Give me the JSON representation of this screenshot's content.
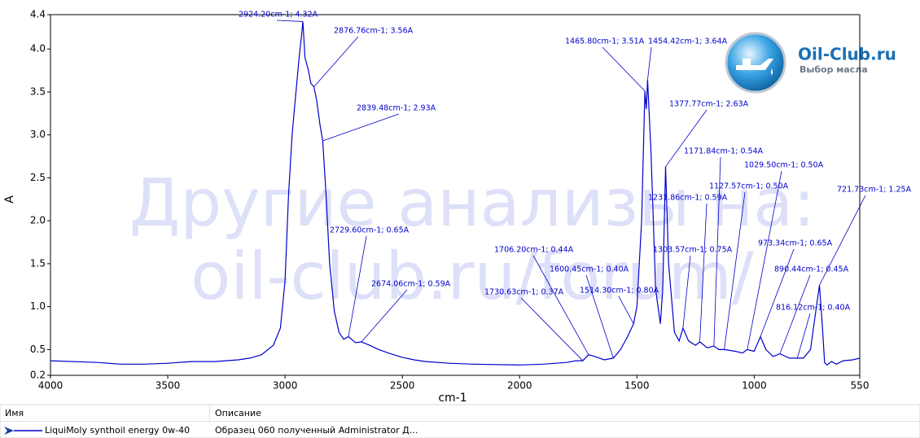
{
  "chart_data": {
    "type": "line",
    "xlabel": "cm-1",
    "ylabel": "A",
    "xlim": [
      4000,
      550
    ],
    "ylim": [
      0.2,
      4.4
    ],
    "xticks": [
      4000,
      3500,
      3000,
      2500,
      2000,
      1500,
      1000,
      550
    ],
    "yticks": [
      0.2,
      0.5,
      {
        "value": 1,
        "label": "1.0"
      },
      1.5,
      {
        "value": 2,
        "label": "2.0"
      },
      2.5,
      {
        "value": 3,
        "label": "3.0"
      },
      3.5,
      {
        "value": 4,
        "label": "4.0"
      },
      4.4
    ],
    "x": [
      4000,
      3800,
      3700,
      3600,
      3500,
      3400,
      3300,
      3200,
      3150,
      3100,
      3050,
      3020,
      3000,
      2985,
      2970,
      2960,
      2950,
      2940,
      2930,
      2924.2,
      2915,
      2900,
      2890,
      2876.76,
      2865,
      2850,
      2839.48,
      2825,
      2810,
      2790,
      2770,
      2750,
      2729.6,
      2700,
      2674.06,
      2640,
      2600,
      2550,
      2500,
      2450,
      2400,
      2300,
      2200,
      2000,
      1900,
      1800,
      1760,
      1730.63,
      1706.2,
      1680,
      1640,
      1600.45,
      1570,
      1540,
      1514.3,
      1500,
      1480,
      1465.8,
      1460,
      1454.42,
      1440,
      1420,
      1400,
      1390,
      1377.77,
      1365,
      1340,
      1320,
      1303.57,
      1280,
      1250,
      1231.86,
      1200,
      1171.84,
      1150,
      1127.57,
      1080,
      1050,
      1029.5,
      1000,
      973.34,
      950,
      920,
      890.44,
      850,
      816.12,
      790,
      760,
      740,
      721.73,
      710,
      700,
      690,
      670,
      650,
      620,
      580,
      550
    ],
    "series": [
      {
        "name": "LiquiMoly synthoil energy 0w-40",
        "description": "Образец 060 полученный Administrator Д...",
        "color": "#0000cc",
        "values": [
          0.37,
          0.35,
          0.33,
          0.33,
          0.34,
          0.36,
          0.36,
          0.38,
          0.4,
          0.44,
          0.55,
          0.75,
          1.3,
          2.3,
          3.0,
          3.3,
          3.6,
          3.9,
          4.15,
          4.32,
          3.9,
          3.75,
          3.6,
          3.56,
          3.4,
          3.1,
          2.93,
          2.3,
          1.5,
          0.95,
          0.7,
          0.62,
          0.65,
          0.58,
          0.59,
          0.55,
          0.5,
          0.45,
          0.41,
          0.38,
          0.36,
          0.34,
          0.33,
          0.32,
          0.33,
          0.35,
          0.37,
          0.37,
          0.44,
          0.42,
          0.38,
          0.4,
          0.5,
          0.65,
          0.8,
          1.0,
          2.0,
          3.51,
          3.3,
          3.64,
          2.8,
          1.2,
          0.8,
          1.2,
          2.63,
          1.5,
          0.7,
          0.6,
          0.75,
          0.6,
          0.55,
          0.59,
          0.52,
          0.54,
          0.5,
          0.5,
          0.48,
          0.46,
          0.5,
          0.48,
          0.65,
          0.5,
          0.42,
          0.45,
          0.4,
          0.4,
          0.4,
          0.5,
          0.9,
          1.25,
          0.8,
          0.35,
          0.32,
          0.36,
          0.33,
          0.37,
          0.38,
          0.4
        ]
      }
    ],
    "annotations": [
      {
        "text": "2924.20cm-1; 4.32A",
        "x": 2924.2,
        "y": 4.32
      },
      {
        "text": "2876.76cm-1; 3.56A",
        "x": 2876.76,
        "y": 3.56
      },
      {
        "text": "2839.48cm-1; 2.93A",
        "x": 2839.48,
        "y": 2.93
      },
      {
        "text": "2729.60cm-1; 0.65A",
        "x": 2729.6,
        "y": 0.65
      },
      {
        "text": "2674.06cm-1; 0.59A",
        "x": 2674.06,
        "y": 0.59
      },
      {
        "text": "1730.63cm-1; 0.37A",
        "x": 1730.63,
        "y": 0.37
      },
      {
        "text": "1706.20cm-1; 0.44A",
        "x": 1706.2,
        "y": 0.44
      },
      {
        "text": "1600.45cm-1; 0.40A",
        "x": 1600.45,
        "y": 0.4
      },
      {
        "text": "1514.30cm-1; 0.80A",
        "x": 1514.3,
        "y": 0.8
      },
      {
        "text": "1465.80cm-1; 3.51A",
        "x": 1465.8,
        "y": 3.51
      },
      {
        "text": "1454.42cm-1; 3.64A",
        "x": 1454.42,
        "y": 3.64
      },
      {
        "text": "1377.77cm-1; 2.63A",
        "x": 1377.77,
        "y": 2.63
      },
      {
        "text": "1303.57cm-1; 0.75A",
        "x": 1303.57,
        "y": 0.75
      },
      {
        "text": "1231.86cm-1; 0.59A",
        "x": 1231.86,
        "y": 0.59
      },
      {
        "text": "1171.84cm-1; 0.54A",
        "x": 1171.84,
        "y": 0.54
      },
      {
        "text": "1127.57cm-1; 0.50A",
        "x": 1127.57,
        "y": 0.5
      },
      {
        "text": "1029.50cm-1; 0.50A",
        "x": 1029.5,
        "y": 0.5
      },
      {
        "text": "973.34cm-1; 0.65A",
        "x": 973.34,
        "y": 0.65
      },
      {
        "text": "890.44cm-1; 0.45A",
        "x": 890.44,
        "y": 0.45
      },
      {
        "text": "816.12cm-1; 0.40A",
        "x": 816.12,
        "y": 0.4
      },
      {
        "text": "721.73cm-1; 1.25A",
        "x": 721.73,
        "y": 1.25
      }
    ],
    "watermark": [
      "Другие анализы на:",
      "oil-club.ru/forum/"
    ],
    "logo": {
      "title": "Oil-Club.ru",
      "subtitle": "Выбор масла"
    },
    "legend_columns": [
      "Имя",
      "Описание"
    ]
  }
}
